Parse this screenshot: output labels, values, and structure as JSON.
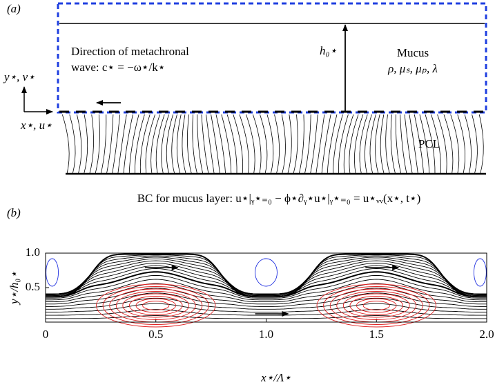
{
  "panel_a": {
    "label": "(a)",
    "axis_y_label": "y⋆, v⋆",
    "axis_x_label": "x⋆, u⋆",
    "wave_label": [
      "Direction of metachronal",
      "wave: c⋆ = −ω⋆/k⋆"
    ],
    "height_label": "h₀⋆",
    "mucus_label": "Mucus",
    "mucus_params": "ρ, μₛ, μₚ, λ",
    "pcl_label": "PCL",
    "bc_label": "BC for mucus layer: u⋆|ᵧ⋆₌₀ − ϕ⋆∂ᵧ⋆u⋆|ᵧ⋆₌₀ = u⋆ᵥᵥ(x⋆, t⋆)"
  },
  "chart_data": {
    "type": "contour",
    "label": "(b)",
    "x_label": "x⋆/Λ⋆",
    "y_label": "y⋆/h₀⋆",
    "xlim": [
      0,
      2
    ],
    "ylim": [
      0,
      1
    ],
    "xticks": [
      0,
      0.5,
      {
        "value": 1,
        "label": "1.0"
      },
      1.5,
      {
        "value": 2,
        "label": "2.0"
      }
    ],
    "yticks": [
      0.5,
      {
        "value": 1,
        "label": "1.0"
      }
    ]
  }
}
